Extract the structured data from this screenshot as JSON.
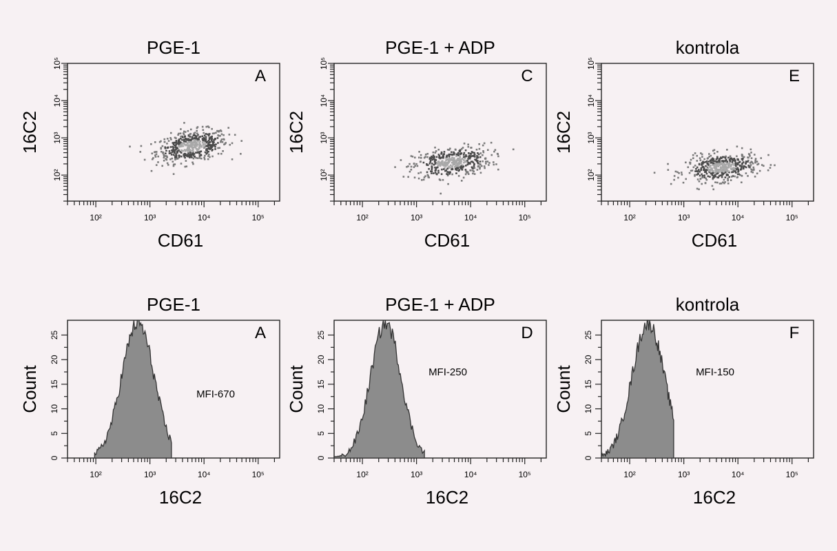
{
  "background": "#f7f1f3",
  "colors": {
    "axis": "#222222",
    "dot_dark": "#4a4a4a",
    "dot_mid": "#7a7a7a",
    "dot_light": "#a8a8a8",
    "hist_fill": "#8c8c8c",
    "hist_line": "#333333"
  },
  "decade_labels": [
    "10²",
    "10³",
    "10⁴",
    "10⁵"
  ],
  "chart_data": [
    {
      "type": "scatter",
      "panel": "A",
      "title": "PGE-1",
      "xlabel": "CD61",
      "ylabel": "16C2",
      "x_scale": "log",
      "y_scale": "log",
      "xlim": [
        30,
        250000
      ],
      "ylim": [
        20,
        100000
      ],
      "cluster": {
        "center_x": 6000,
        "center_y": 600,
        "spread_x_decades": 0.33,
        "spread_y_decades": 0.2,
        "tilt": 0.35,
        "n_points": 520
      }
    },
    {
      "type": "scatter",
      "panel": "C",
      "title": "PGE-1 + ADP",
      "xlabel": "CD61",
      "ylabel": "16C2",
      "x_scale": "log",
      "y_scale": "log",
      "xlim": [
        30,
        250000
      ],
      "ylim": [
        20,
        100000
      ],
      "cluster": {
        "center_x": 4500,
        "center_y": 220,
        "spread_x_decades": 0.36,
        "spread_y_decades": 0.2,
        "tilt": 0.3,
        "n_points": 440
      }
    },
    {
      "type": "scatter",
      "panel": "E",
      "title": "kontrola",
      "xlabel": "CD61",
      "ylabel": "16C2",
      "x_scale": "log",
      "y_scale": "log",
      "xlim": [
        30,
        250000
      ],
      "ylim": [
        20,
        100000
      ],
      "cluster": {
        "center_x": 5000,
        "center_y": 160,
        "spread_x_decades": 0.33,
        "spread_y_decades": 0.18,
        "tilt": 0.25,
        "n_points": 480
      }
    },
    {
      "type": "area",
      "panel": "A",
      "title": "PGE-1",
      "xlabel": "16C2",
      "ylabel": "Count",
      "annotation": "MFI-670",
      "x_scale": "log",
      "xlim": [
        30,
        250000
      ],
      "ylim": [
        0,
        28
      ],
      "yticks": [
        0,
        5,
        10,
        15,
        20,
        25
      ],
      "distribution": {
        "peak_x": 600,
        "peak_count": 27.5,
        "width_decades": 0.3,
        "min_x": 95,
        "max_x": 2500
      }
    },
    {
      "type": "area",
      "panel": "D",
      "title": "PGE-1 + ADP",
      "xlabel": "16C2",
      "ylabel": "Count",
      "annotation": "MFI-250",
      "x_scale": "log",
      "xlim": [
        30,
        250000
      ],
      "ylim": [
        0,
        28
      ],
      "yticks": [
        0,
        5,
        10,
        15,
        20,
        25
      ],
      "distribution": {
        "peak_x": 270,
        "peak_count": 27.5,
        "width_decades": 0.28,
        "min_x": 30,
        "max_x": 1400
      }
    },
    {
      "type": "area",
      "panel": "F",
      "title": "kontrola",
      "xlabel": "16C2",
      "ylabel": "Count",
      "annotation": "MFI-150",
      "x_scale": "log",
      "xlim": [
        30,
        250000
      ],
      "ylim": [
        0,
        28
      ],
      "yticks": [
        0,
        5,
        10,
        15,
        20,
        25
      ],
      "distribution": {
        "peak_x": 220,
        "peak_count": 27.5,
        "width_decades": 0.3,
        "min_x": 30,
        "max_x": 650
      }
    }
  ]
}
